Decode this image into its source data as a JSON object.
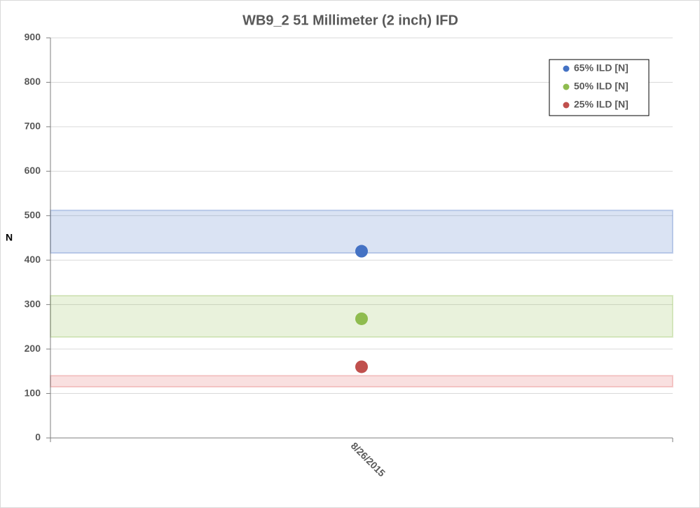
{
  "chart_data": {
    "type": "scatter",
    "title": "WB9_2 51 Millimeter (2 inch) IFD",
    "y_label": "N",
    "categories": [
      "8/26/2015"
    ],
    "series": [
      {
        "name": "65% ILD [N]",
        "color": "#4472c4",
        "values": [
          420
        ]
      },
      {
        "name": "50% ILD [N]",
        "color": "#8fbc4f",
        "values": [
          268
        ]
      },
      {
        "name": "25% ILD [N]",
        "color": "#c0504d",
        "values": [
          160
        ]
      }
    ],
    "bands": [
      {
        "color": "#4472c4",
        "range": [
          416,
          512
        ]
      },
      {
        "color": "#8fbc4f",
        "range": [
          227,
          320
        ]
      },
      {
        "color": "#e06666",
        "range": [
          115,
          140
        ]
      }
    ],
    "ylim": [
      0,
      900
    ],
    "yticks": [
      0,
      100,
      200,
      300,
      400,
      500,
      600,
      700,
      800,
      900
    ],
    "grid": true,
    "legend": "top-right"
  }
}
